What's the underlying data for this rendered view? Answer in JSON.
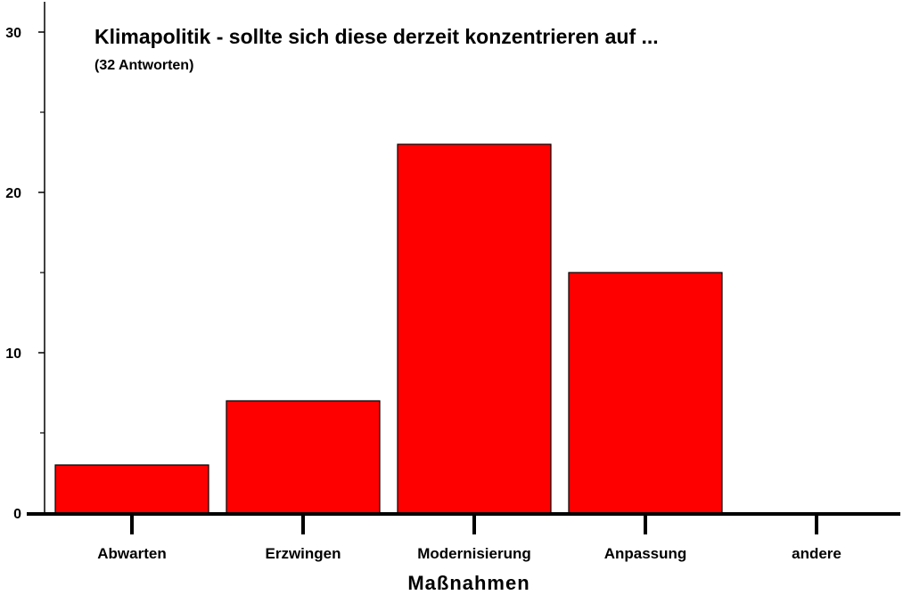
{
  "chart_data": {
    "type": "bar",
    "title": "Klimapolitik - sollte sich diese derzeit konzentrieren auf ...",
    "subtitle": "(32 Antworten)",
    "xlabel": "Maßnahmen",
    "ylabel": "",
    "categories": [
      "Abwarten",
      "Erzwingen",
      "Modernisierung",
      "Anpassung",
      "andere"
    ],
    "values": [
      3,
      7,
      23,
      15,
      0
    ],
    "ylim": [
      0,
      30
    ],
    "yticks": [
      0,
      10,
      20,
      30
    ],
    "grid": false,
    "legend": "none",
    "bar_color": "#ff0000"
  }
}
